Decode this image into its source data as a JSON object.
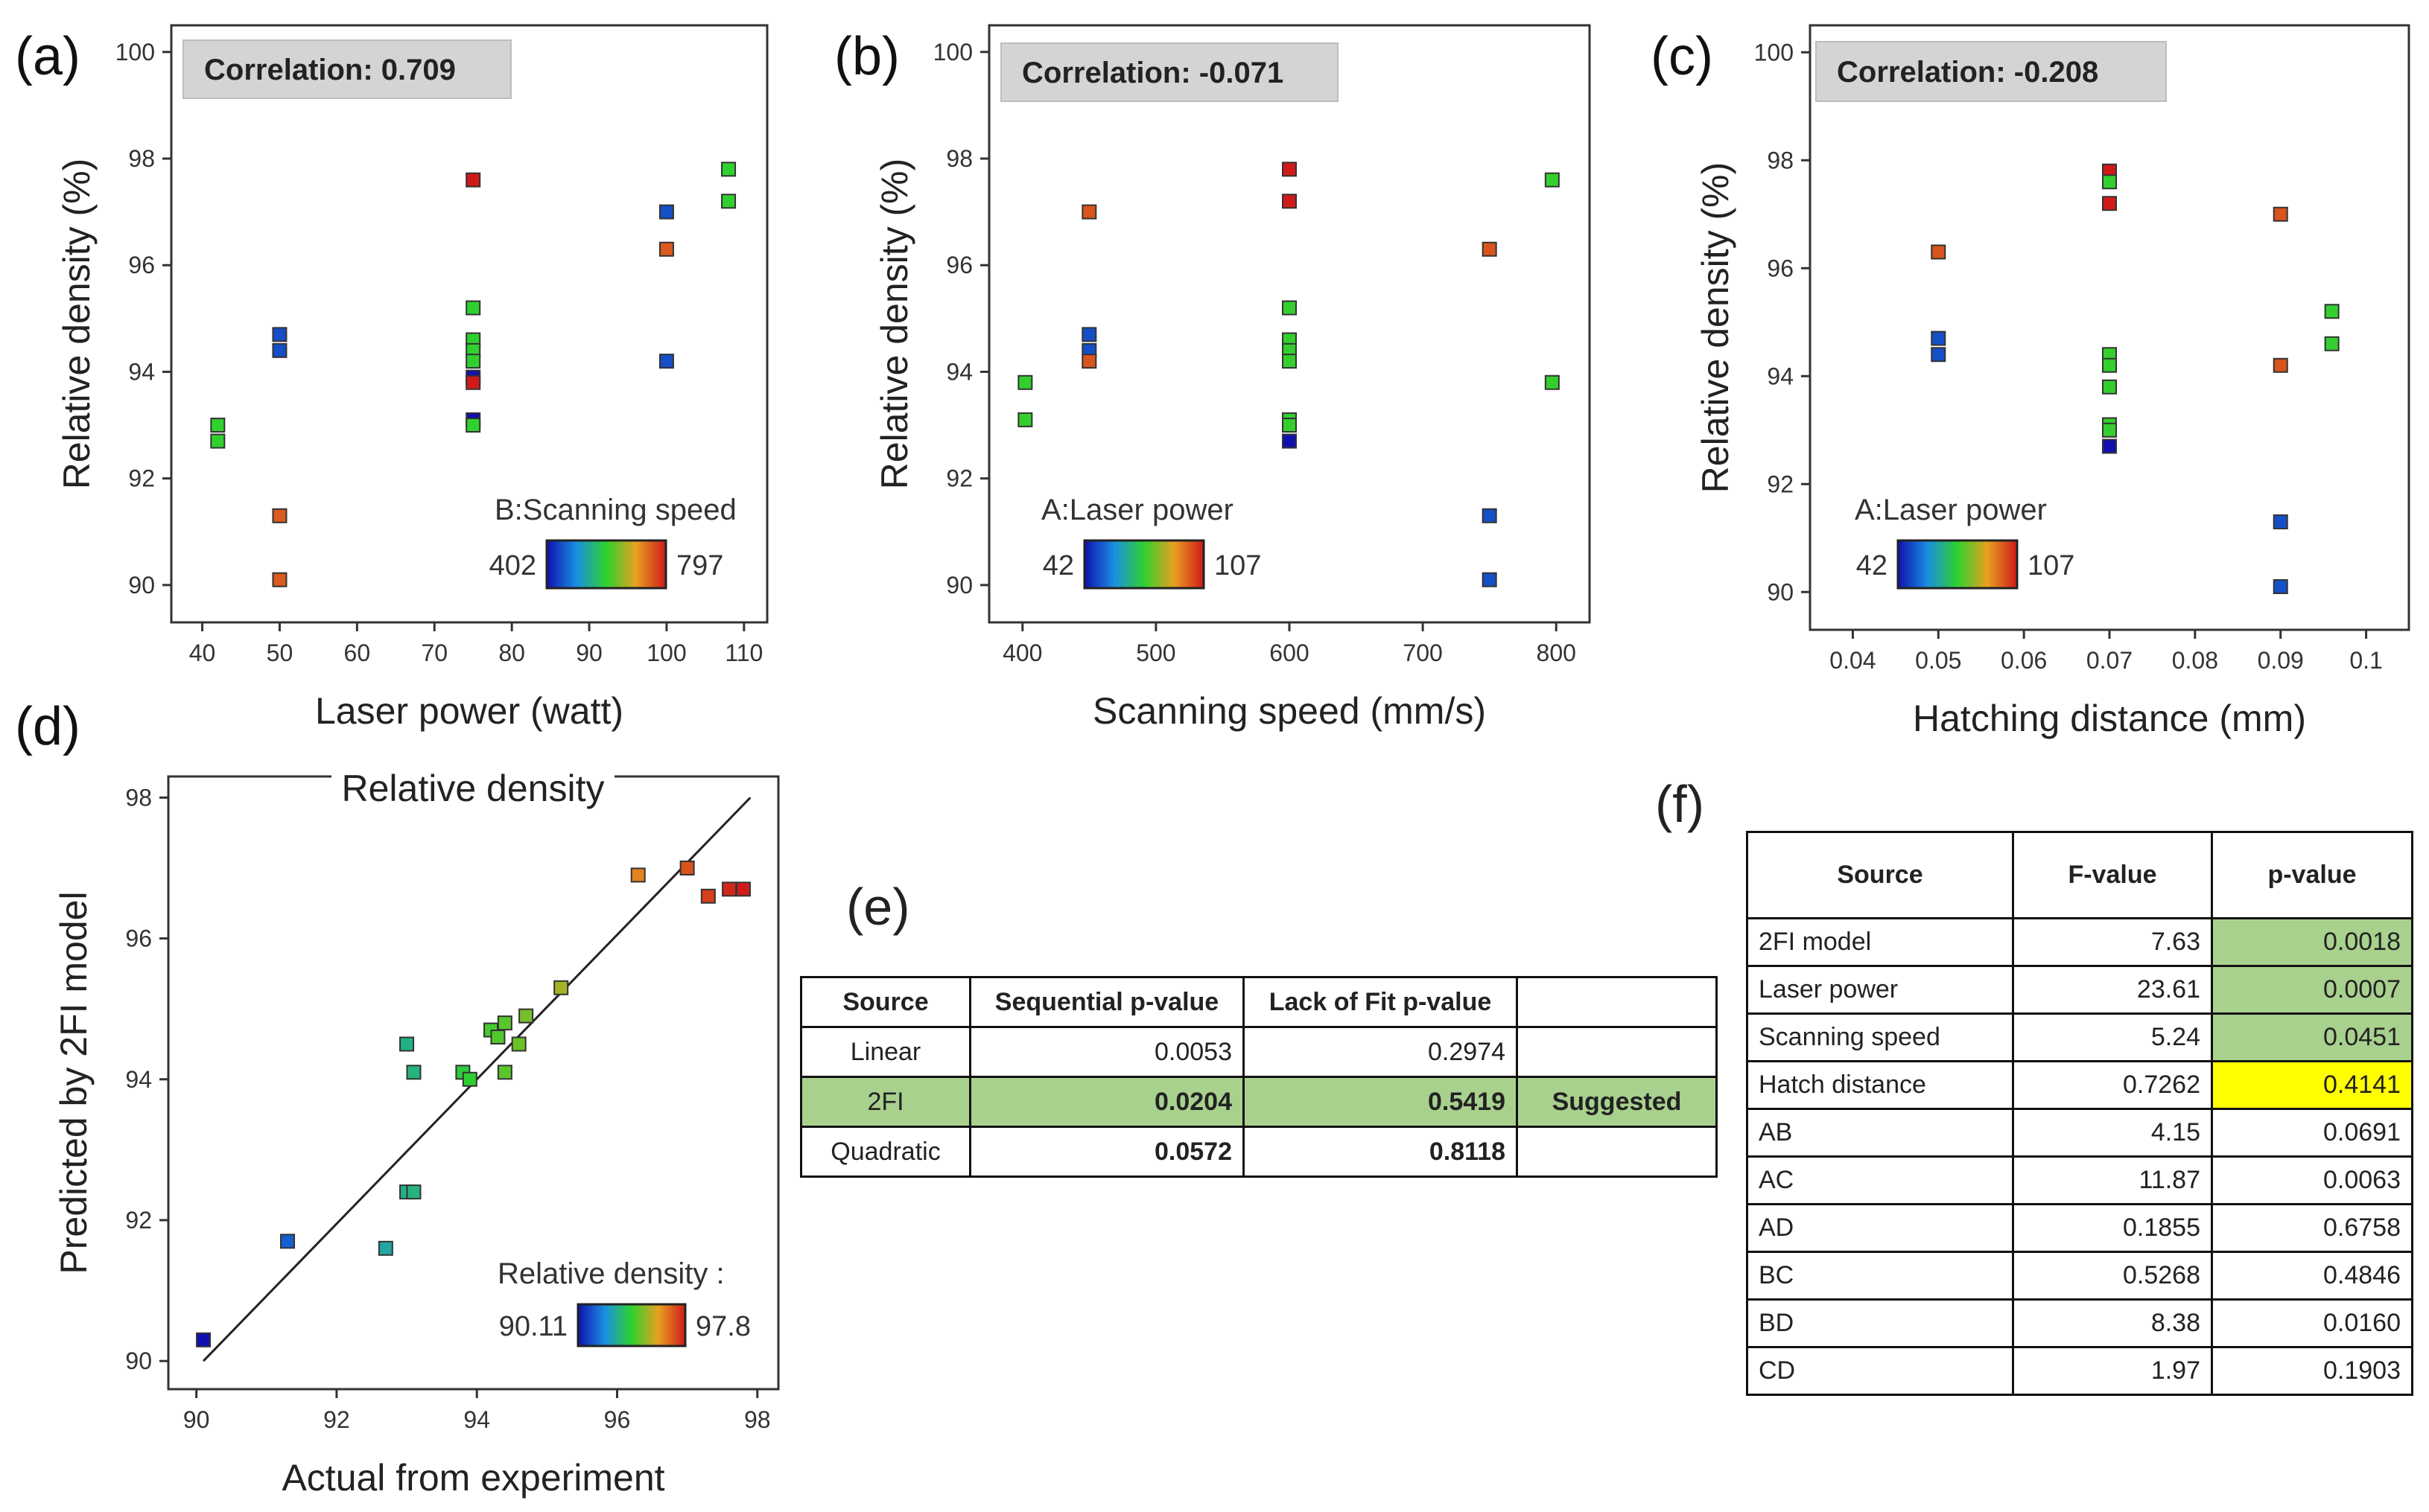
{
  "chart_data": [
    {
      "id": "a",
      "type": "scatter",
      "panel_label": "(a)",
      "correlation_label": "Correlation: 0.709",
      "xlabel": "Laser power (watt)",
      "ylabel": "Relative density (%)",
      "xlim": [
        36,
        113
      ],
      "ylim": [
        89.3,
        100.5
      ],
      "xticks": [
        40,
        50,
        60,
        70,
        80,
        90,
        100,
        110
      ],
      "yticks": [
        90,
        92,
        94,
        96,
        98,
        100
      ],
      "colorbar": {
        "title": "B:Scanning speed",
        "min_label": "402",
        "max_label": "797",
        "min": 402,
        "max": 797
      },
      "points": [
        {
          "x": 42,
          "y": 93.0,
          "c": 600
        },
        {
          "x": 42,
          "y": 92.7,
          "c": 600
        },
        {
          "x": 50,
          "y": 94.7,
          "c": 450
        },
        {
          "x": 50,
          "y": 94.4,
          "c": 450
        },
        {
          "x": 50,
          "y": 91.3,
          "c": 750
        },
        {
          "x": 50,
          "y": 90.1,
          "c": 750
        },
        {
          "x": 75,
          "y": 97.6,
          "c": 797
        },
        {
          "x": 75,
          "y": 95.2,
          "c": 600
        },
        {
          "x": 75,
          "y": 94.6,
          "c": 600
        },
        {
          "x": 75,
          "y": 94.4,
          "c": 600
        },
        {
          "x": 75,
          "y": 94.2,
          "c": 600
        },
        {
          "x": 75,
          "y": 93.9,
          "c": 402
        },
        {
          "x": 75,
          "y": 93.8,
          "c": 797
        },
        {
          "x": 75,
          "y": 93.1,
          "c": 402
        },
        {
          "x": 75,
          "y": 93.0,
          "c": 600
        },
        {
          "x": 100,
          "y": 97.0,
          "c": 450
        },
        {
          "x": 100,
          "y": 96.3,
          "c": 750
        },
        {
          "x": 100,
          "y": 94.2,
          "c": 450
        },
        {
          "x": 108,
          "y": 97.8,
          "c": 600
        },
        {
          "x": 108,
          "y": 97.2,
          "c": 600
        }
      ]
    },
    {
      "id": "b",
      "type": "scatter",
      "panel_label": "(b)",
      "correlation_label": "Correlation: -0.071",
      "xlabel": "Scanning speed (mm/s)",
      "ylabel": "Relative density (%)",
      "xlim": [
        375,
        825
      ],
      "ylim": [
        89.3,
        100.5
      ],
      "xticks": [
        400,
        500,
        600,
        700,
        800
      ],
      "yticks": [
        90,
        92,
        94,
        96,
        98,
        100
      ],
      "colorbar": {
        "title": "A:Laser power",
        "min_label": "42",
        "max_label": "107",
        "min": 42,
        "max": 107
      },
      "points": [
        {
          "x": 402,
          "y": 93.8,
          "c": 75
        },
        {
          "x": 402,
          "y": 93.1,
          "c": 75
        },
        {
          "x": 450,
          "y": 97.0,
          "c": 100
        },
        {
          "x": 450,
          "y": 94.7,
          "c": 50
        },
        {
          "x": 450,
          "y": 94.4,
          "c": 50
        },
        {
          "x": 450,
          "y": 94.2,
          "c": 100
        },
        {
          "x": 600,
          "y": 97.8,
          "c": 107
        },
        {
          "x": 600,
          "y": 97.2,
          "c": 107
        },
        {
          "x": 600,
          "y": 95.2,
          "c": 75
        },
        {
          "x": 600,
          "y": 94.6,
          "c": 75
        },
        {
          "x": 600,
          "y": 94.4,
          "c": 75
        },
        {
          "x": 600,
          "y": 94.2,
          "c": 75
        },
        {
          "x": 600,
          "y": 93.1,
          "c": 75
        },
        {
          "x": 600,
          "y": 93.0,
          "c": 75
        },
        {
          "x": 600,
          "y": 92.7,
          "c": 42
        },
        {
          "x": 750,
          "y": 96.3,
          "c": 100
        },
        {
          "x": 750,
          "y": 91.3,
          "c": 50
        },
        {
          "x": 750,
          "y": 90.1,
          "c": 50
        },
        {
          "x": 797,
          "y": 97.6,
          "c": 75
        },
        {
          "x": 797,
          "y": 93.8,
          "c": 75
        }
      ]
    },
    {
      "id": "c",
      "type": "scatter",
      "panel_label": "(c)",
      "correlation_label": "Correlation: -0.208",
      "xlabel": "Hatching distance (mm)",
      "ylabel": "Relative density (%)",
      "xlim": [
        0.035,
        0.105
      ],
      "ylim": [
        89.3,
        100.5
      ],
      "xticks": [
        0.04,
        0.05,
        0.06,
        0.07,
        0.08,
        0.09,
        0.1
      ],
      "yticks": [
        90,
        92,
        94,
        96,
        98,
        100
      ],
      "colorbar": {
        "title": "A:Laser power",
        "min_label": "42",
        "max_label": "107",
        "min": 42,
        "max": 107
      },
      "points": [
        {
          "x": 0.05,
          "y": 96.3,
          "c": 100
        },
        {
          "x": 0.05,
          "y": 94.7,
          "c": 50
        },
        {
          "x": 0.05,
          "y": 94.4,
          "c": 50
        },
        {
          "x": 0.07,
          "y": 97.8,
          "c": 107
        },
        {
          "x": 0.07,
          "y": 97.6,
          "c": 75
        },
        {
          "x": 0.07,
          "y": 97.2,
          "c": 107
        },
        {
          "x": 0.07,
          "y": 94.4,
          "c": 75
        },
        {
          "x": 0.07,
          "y": 94.2,
          "c": 75
        },
        {
          "x": 0.07,
          "y": 93.8,
          "c": 75
        },
        {
          "x": 0.07,
          "y": 93.1,
          "c": 75
        },
        {
          "x": 0.07,
          "y": 93.0,
          "c": 75
        },
        {
          "x": 0.07,
          "y": 92.7,
          "c": 42
        },
        {
          "x": 0.09,
          "y": 97.0,
          "c": 100
        },
        {
          "x": 0.09,
          "y": 94.2,
          "c": 100
        },
        {
          "x": 0.09,
          "y": 91.3,
          "c": 50
        },
        {
          "x": 0.09,
          "y": 90.1,
          "c": 50
        },
        {
          "x": 0.096,
          "y": 95.2,
          "c": 75
        },
        {
          "x": 0.096,
          "y": 94.6,
          "c": 75
        }
      ]
    },
    {
      "id": "d",
      "type": "scatter",
      "panel_label": "(d)",
      "title": "Relative density",
      "xlabel": "Actual from experiment",
      "ylabel": "Predicted by 2FI model",
      "xlim": [
        89.6,
        98.3
      ],
      "ylim": [
        89.6,
        98.3
      ],
      "xticks": [
        90,
        92,
        94,
        96,
        98
      ],
      "yticks": [
        90,
        92,
        94,
        96,
        98
      ],
      "reference_line": [
        [
          90.1,
          90.0
        ],
        [
          97.9,
          98.0
        ]
      ],
      "colorbar": {
        "title": "Relative density :",
        "min_label": "90.11",
        "max_label": "97.8",
        "min": 90.11,
        "max": 97.8
      },
      "points": [
        {
          "x": 90.1,
          "y": 90.3
        },
        {
          "x": 91.3,
          "y": 91.7
        },
        {
          "x": 92.7,
          "y": 91.6
        },
        {
          "x": 93.0,
          "y": 92.4
        },
        {
          "x": 93.1,
          "y": 92.4
        },
        {
          "x": 93.0,
          "y": 94.5
        },
        {
          "x": 93.1,
          "y": 94.1
        },
        {
          "x": 93.8,
          "y": 94.1
        },
        {
          "x": 93.9,
          "y": 94.0
        },
        {
          "x": 94.2,
          "y": 94.7
        },
        {
          "x": 94.3,
          "y": 94.6
        },
        {
          "x": 94.4,
          "y": 94.8
        },
        {
          "x": 94.4,
          "y": 94.1
        },
        {
          "x": 94.6,
          "y": 94.5
        },
        {
          "x": 94.7,
          "y": 94.9
        },
        {
          "x": 95.2,
          "y": 95.3
        },
        {
          "x": 96.3,
          "y": 96.9
        },
        {
          "x": 97.0,
          "y": 97.0
        },
        {
          "x": 97.3,
          "y": 96.6
        },
        {
          "x": 97.6,
          "y": 96.7
        },
        {
          "x": 97.8,
          "y": 96.7
        }
      ]
    },
    {
      "id": "e",
      "type": "table",
      "panel_label": "(e)",
      "headers": [
        "Source",
        "Sequential p-value",
        "Lack of Fit p-value",
        ""
      ],
      "rows": [
        {
          "cells": [
            "Linear",
            "0.0053",
            "0.2974",
            ""
          ]
        },
        {
          "cells": [
            "2FI",
            "0.0204",
            "0.5419",
            "Suggested"
          ]
        },
        {
          "cells": [
            "Quadratic",
            "0.0572",
            "0.8118",
            ""
          ]
        }
      ]
    },
    {
      "id": "f",
      "type": "table",
      "panel_label": "(f)",
      "headers": [
        "Source",
        "F-value",
        "p-value"
      ],
      "rows": [
        {
          "cells": [
            "2FI model",
            "7.63",
            "0.0018"
          ]
        },
        {
          "cells": [
            "Laser power",
            "23.61",
            "0.0007"
          ]
        },
        {
          "cells": [
            "Scanning speed",
            "5.24",
            "0.0451"
          ]
        },
        {
          "cells": [
            "Hatch distance",
            "0.7262",
            "0.4141"
          ]
        },
        {
          "cells": [
            "AB",
            "4.15",
            "0.0691"
          ]
        },
        {
          "cells": [
            "AC",
            "11.87",
            "0.0063"
          ]
        },
        {
          "cells": [
            "AD",
            "0.1855",
            "0.6758"
          ]
        },
        {
          "cells": [
            "BC",
            "0.5268",
            "0.4846"
          ]
        },
        {
          "cells": [
            "BD",
            "8.38",
            "0.0160"
          ]
        },
        {
          "cells": [
            "CD",
            "1.97",
            "0.1903"
          ]
        }
      ]
    }
  ]
}
